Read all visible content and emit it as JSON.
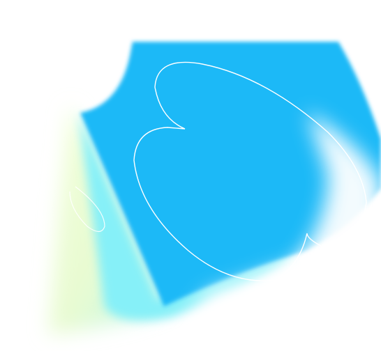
{
  "artwork": {
    "name": "abstract-gradient-graphic",
    "colors": {
      "background": "#ffffff",
      "primary_blue": "#1ab9f7",
      "deep_blue": "#16b3f5",
      "cyan_glow": "#86f0f8",
      "yellow_glow": "#f2ffd8",
      "outline_stroke": "#ffffff"
    }
  }
}
